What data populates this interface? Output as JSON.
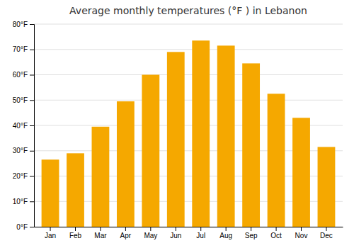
{
  "chart_data": {
    "type": "bar",
    "title": "Average monthly temperatures (°F ) in Lebanon",
    "categories": [
      "Jan",
      "Feb",
      "Mar",
      "Apr",
      "May",
      "Jun",
      "Jul",
      "Aug",
      "Sep",
      "Oct",
      "Nov",
      "Dec"
    ],
    "values": [
      26.5,
      29.0,
      39.5,
      49.5,
      60.0,
      69.0,
      73.5,
      71.5,
      64.5,
      52.5,
      43.0,
      31.5
    ],
    "color": "#F5A800",
    "ylim": [
      0,
      80
    ],
    "yticks": [
      {
        "value": 0,
        "label": "0°F"
      },
      {
        "value": 10,
        "label": "10°F"
      },
      {
        "value": 20,
        "label": "20°F"
      },
      {
        "value": 30,
        "label": "30°F"
      },
      {
        "value": 40,
        "label": "40°F"
      },
      {
        "value": 50,
        "label": "50°F"
      },
      {
        "value": 60,
        "label": "60°F"
      },
      {
        "value": 70,
        "label": "70°F"
      },
      {
        "value": 80,
        "label": "80°F"
      }
    ],
    "grid": true
  }
}
